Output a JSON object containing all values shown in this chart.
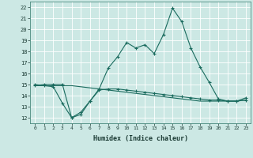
{
  "xlabel": "Humidex (Indice chaleur)",
  "ylabel": "",
  "background_color": "#cce8e4",
  "grid_color": "#b0d8d2",
  "line_color": "#1a6b5e",
  "xlim": [
    -0.5,
    23.5
  ],
  "ylim": [
    11.5,
    22.5
  ],
  "yticks": [
    12,
    13,
    14,
    15,
    16,
    17,
    18,
    19,
    20,
    21,
    22
  ],
  "xticks": [
    0,
    1,
    2,
    3,
    4,
    5,
    6,
    7,
    8,
    9,
    10,
    11,
    12,
    13,
    14,
    15,
    16,
    17,
    18,
    19,
    20,
    21,
    22,
    23
  ],
  "series1_x": [
    0,
    1,
    2,
    3,
    4,
    5,
    6,
    7,
    8,
    9,
    10,
    11,
    12,
    13,
    14,
    15,
    16,
    17,
    18,
    19,
    20,
    21,
    22,
    23
  ],
  "series1_y": [
    14.9,
    15.0,
    15.0,
    15.0,
    12.0,
    12.5,
    13.5,
    14.6,
    16.5,
    17.5,
    18.8,
    18.3,
    18.6,
    17.8,
    19.5,
    21.9,
    20.7,
    18.3,
    16.6,
    15.2,
    13.7,
    13.5,
    13.5,
    13.8
  ],
  "series2_x": [
    0,
    1,
    2,
    3,
    4,
    5,
    6,
    7,
    8,
    9,
    10,
    11,
    12,
    13,
    14,
    15,
    16,
    17,
    18,
    19,
    20,
    21,
    22,
    23
  ],
  "series2_y": [
    15.0,
    14.9,
    14.8,
    13.3,
    12.0,
    12.3,
    13.5,
    14.5,
    14.6,
    14.6,
    14.5,
    14.4,
    14.3,
    14.2,
    14.1,
    14.0,
    13.9,
    13.8,
    13.7,
    13.6,
    13.6,
    13.5,
    13.5,
    13.6
  ],
  "series3_x": [
    0,
    1,
    2,
    3,
    4,
    5,
    6,
    7,
    8,
    9,
    10,
    11,
    12,
    13,
    14,
    15,
    16,
    17,
    18,
    19,
    20,
    21,
    22,
    23
  ],
  "series3_y": [
    14.9,
    14.9,
    14.9,
    14.9,
    14.9,
    14.8,
    14.7,
    14.6,
    14.5,
    14.4,
    14.3,
    14.2,
    14.1,
    14.0,
    13.9,
    13.8,
    13.7,
    13.6,
    13.5,
    13.5,
    13.5,
    13.5,
    13.5,
    13.6
  ]
}
